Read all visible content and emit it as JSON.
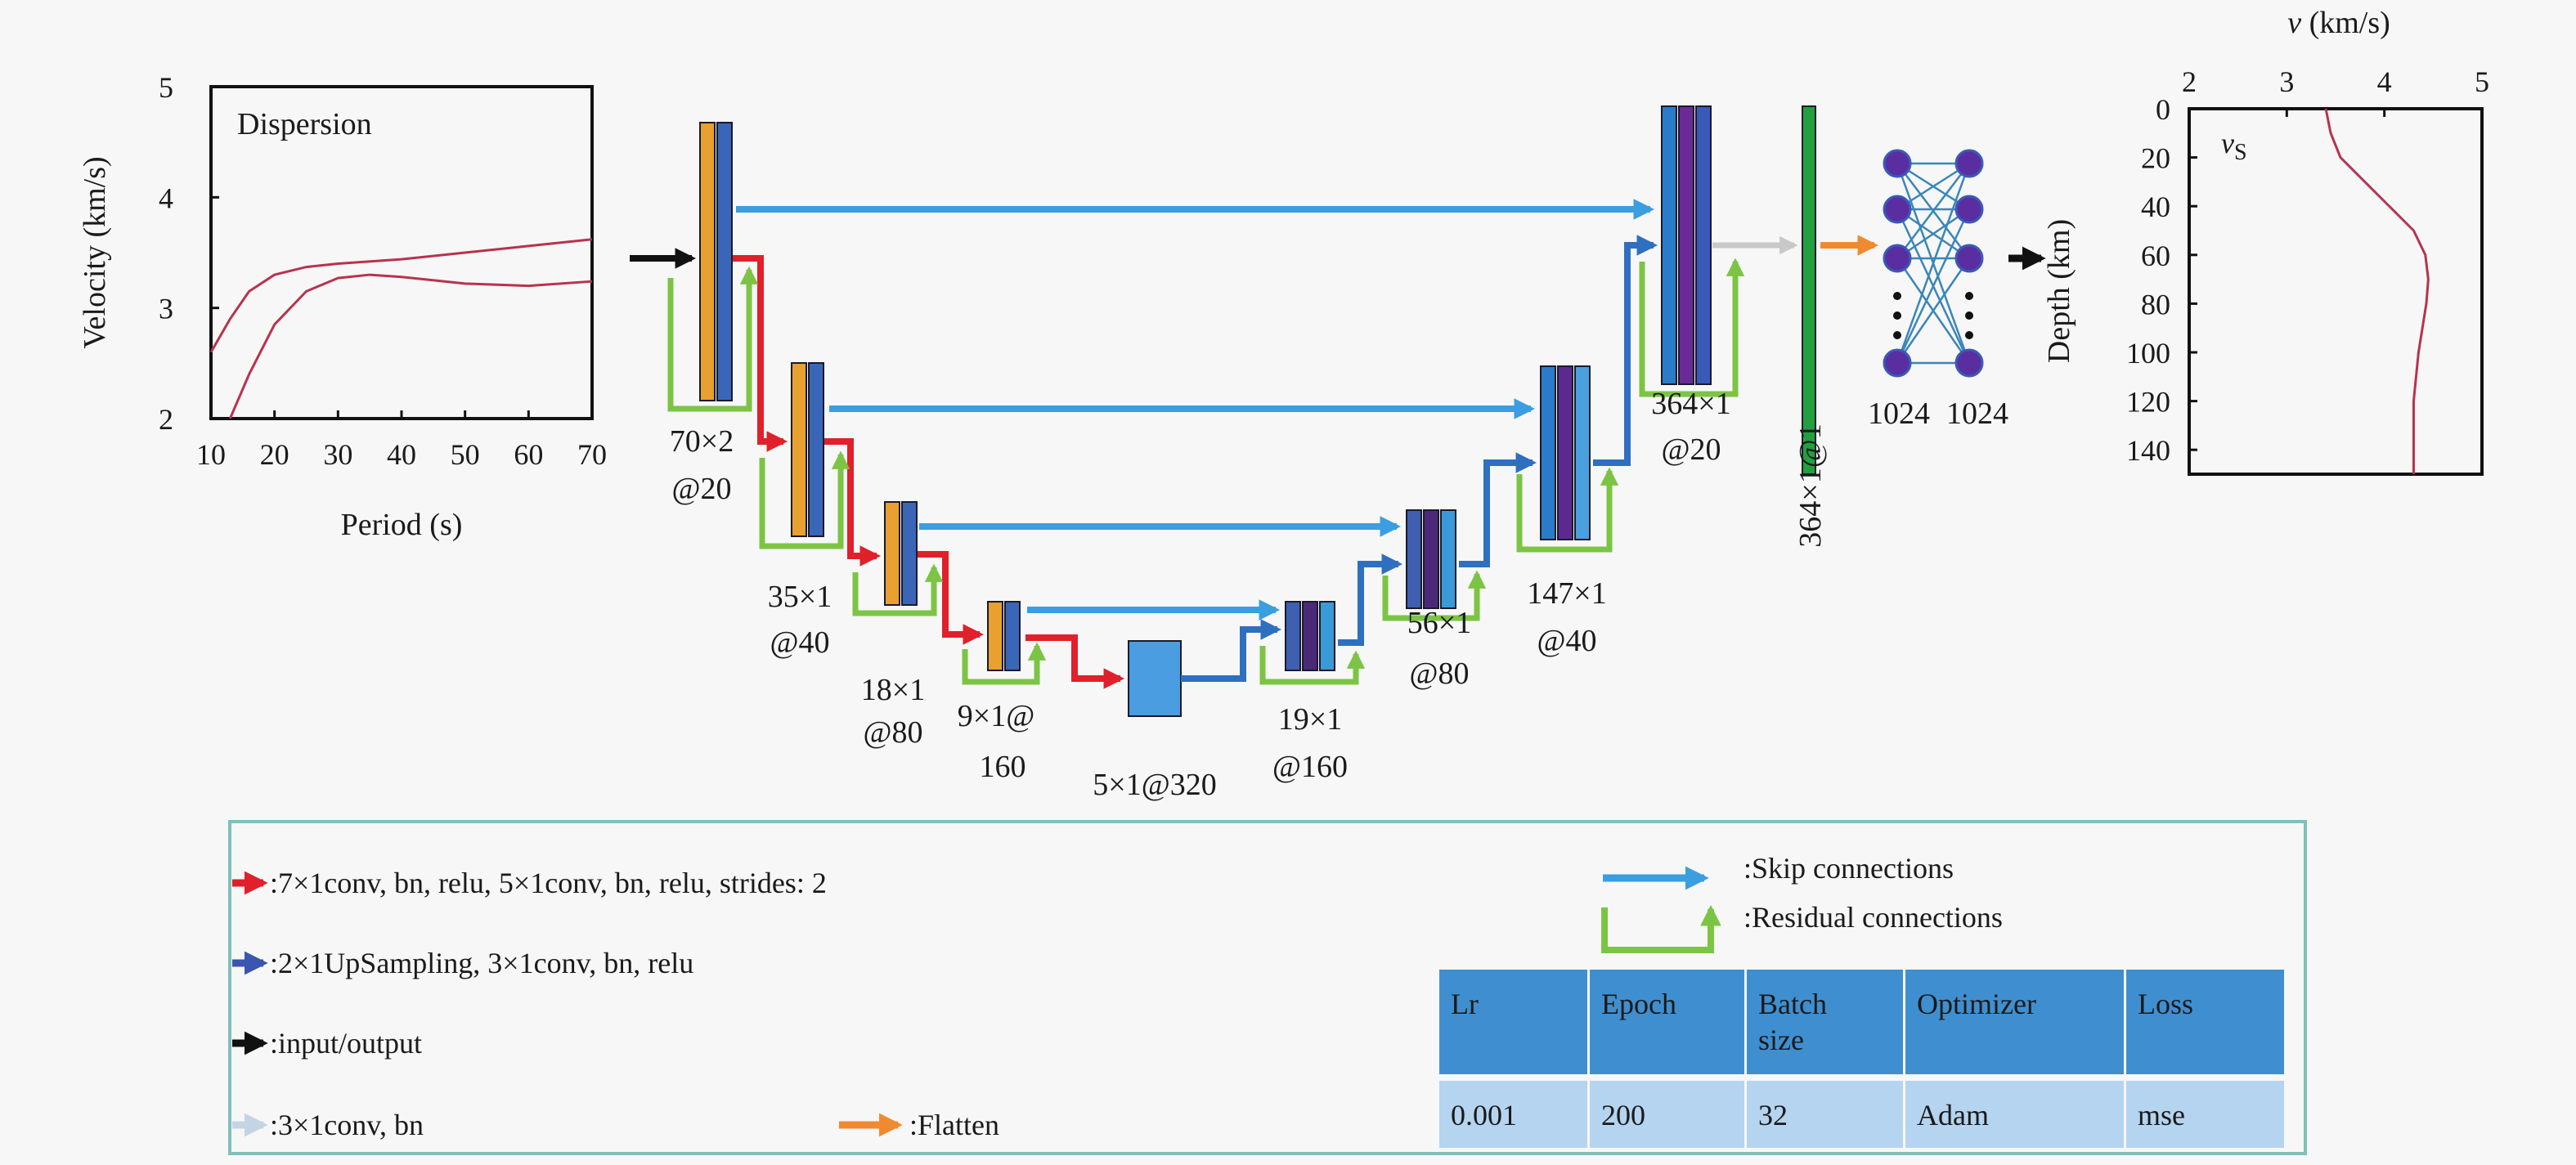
{
  "colors": {
    "encoder_conv": "#e8a030",
    "encoder_bn": "#3a66b8",
    "downsample_arrow": "#e0202a",
    "upsample_arrow": "#2f6fc0",
    "skip_arrow": "#3a9ee0",
    "residual_arrow": "#7cc444",
    "io_arrow": "#111111",
    "conv_bn_arrow": "#c8c8c8",
    "flatten_arrow": "#f08a30",
    "dense_bar": "#22a040",
    "node": "#5a2ea0",
    "curve": "#b8324e",
    "legend_border": "#7fc0b8",
    "table_header": "#3f8fd0",
    "table_row": "#b4d4f0"
  },
  "chart_data": [
    {
      "type": "line",
      "title": "Dispersion",
      "xlabel": "Period (s)",
      "ylabel": "Velocity (km/s)",
      "xlim": [
        10,
        70
      ],
      "ylim": [
        2,
        5
      ],
      "xticks": [
        "10",
        "20",
        "30",
        "40",
        "50",
        "60",
        "70"
      ],
      "yticks": [
        "2",
        "3",
        "4",
        "5"
      ],
      "grid": false,
      "series": [
        {
          "x": [
            10,
            13,
            16,
            20,
            25,
            30,
            40,
            50,
            60,
            70
          ],
          "y": [
            2.6,
            2.9,
            3.15,
            3.3,
            3.37,
            3.4,
            3.44,
            3.5,
            3.56,
            3.62
          ]
        },
        {
          "x": [
            13,
            16,
            20,
            25,
            30,
            35,
            40,
            50,
            60,
            70
          ],
          "y": [
            2.0,
            2.4,
            2.85,
            3.15,
            3.27,
            3.3,
            3.28,
            3.22,
            3.2,
            3.24
          ]
        }
      ]
    },
    {
      "type": "line",
      "title": "",
      "xlabel": "v (km/s)",
      "ylabel": "Depth (km)",
      "curve_label": "vS",
      "xlim": [
        2,
        5
      ],
      "ylim": [
        0,
        150
      ],
      "y_inverted": true,
      "x_axis_position": "top",
      "xticks": [
        "2",
        "3",
        "4",
        "5"
      ],
      "yticks": [
        "0",
        "20",
        "40",
        "60",
        "80",
        "100",
        "120",
        "140"
      ],
      "grid": false,
      "series": [
        {
          "depth": [
            0,
            10,
            20,
            30,
            40,
            50,
            60,
            70,
            80,
            100,
            120,
            150
          ],
          "v": [
            3.4,
            3.45,
            3.55,
            3.8,
            4.05,
            4.3,
            4.42,
            4.45,
            4.43,
            4.35,
            4.3,
            4.3
          ]
        }
      ]
    }
  ],
  "network": {
    "encoder_labels": [
      [
        "70×2",
        "@20"
      ],
      [
        "35×1",
        "@40"
      ],
      [
        "18×1",
        "@80"
      ],
      [
        "9×1@",
        "160"
      ]
    ],
    "bottleneck_label": "5×1@320",
    "decoder_labels": [
      [
        "19×1",
        "@160"
      ],
      [
        "56×1",
        "@80"
      ],
      [
        "147×1",
        "@40"
      ],
      [
        "364×1",
        "@20"
      ]
    ],
    "dense_label": "364×1@1",
    "fc_labels": [
      "1024",
      "1024"
    ]
  },
  "legend": {
    "items": [
      {
        "label": ":7×1conv, bn, relu, 5×1conv, bn, relu, strides: 2",
        "icon": "red-arrow-icon"
      },
      {
        "label": ":2×1UpSampling, 3×1conv, bn, relu",
        "icon": "blue-arrow-icon"
      },
      {
        "label": ":input/output",
        "icon": "black-arrow-icon"
      },
      {
        "label": ":3×1conv, bn",
        "icon": "gray-arrow-icon"
      },
      {
        "label": ":Flatten",
        "icon": "orange-arrow-icon"
      },
      {
        "label": ":Skip connections",
        "icon": "skip-arrow-icon"
      },
      {
        "label": ":Residual connections",
        "icon": "residual-arrow-icon"
      }
    ]
  },
  "table": {
    "headers": [
      "Lr",
      "Epoch",
      "Batch size",
      "Optimizer",
      "Loss"
    ],
    "row": [
      "0.001",
      "200",
      "32",
      "Adam",
      "mse"
    ]
  }
}
